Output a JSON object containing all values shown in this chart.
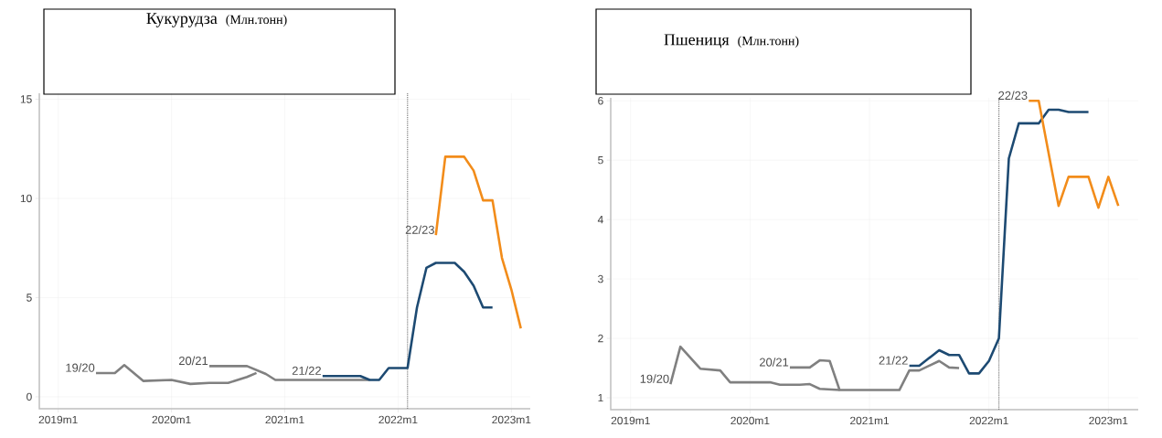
{
  "chart_data": [
    {
      "type": "line",
      "title": "Кукурудза",
      "subtitle": "(Млн.тонн)",
      "xlim": [
        "2018-11",
        "2023-03"
      ],
      "ylim": [
        -0.6,
        15.3
      ],
      "xticks": [
        {
          "value": "2019-01",
          "label": "2019m1"
        },
        {
          "value": "2020-01",
          "label": "2020m1"
        },
        {
          "value": "2021-01",
          "label": "2021m1"
        },
        {
          "value": "2022-01",
          "label": "2022m1"
        },
        {
          "value": "2023-01",
          "label": "2023m1"
        }
      ],
      "yticks": [
        0,
        5,
        10,
        15
      ],
      "grid": true,
      "series": [
        {
          "name": "19/20",
          "color": "#808080",
          "x": [
            "2019-05",
            "2019-07",
            "2019-08",
            "2019-10",
            "2020-01",
            "2020-03",
            "2020-05",
            "2020-07",
            "2020-09",
            "2020-10"
          ],
          "values": [
            1.2,
            1.2,
            1.6,
            0.8,
            0.85,
            0.65,
            0.7,
            0.7,
            1.0,
            1.2
          ]
        },
        {
          "name": "20/21",
          "color": "#808080",
          "x": [
            "2020-05",
            "2020-09",
            "2020-11",
            "2020-12",
            "2021-01",
            "2021-10"
          ],
          "values": [
            1.55,
            1.55,
            1.15,
            0.85,
            0.85,
            0.85
          ]
        },
        {
          "name": "21/22",
          "color": "#1d4a72",
          "x": [
            "2021-05",
            "2021-09",
            "2021-10",
            "2021-11",
            "2021-12",
            "2022-02",
            "2022-03",
            "2022-04",
            "2022-05",
            "2022-07",
            "2022-08",
            "2022-09",
            "2022-10",
            "2022-11"
          ],
          "values": [
            1.05,
            1.05,
            0.85,
            0.85,
            1.45,
            1.45,
            4.5,
            6.5,
            6.75,
            6.75,
            6.3,
            5.6,
            4.5,
            4.5
          ]
        },
        {
          "name": "22/23",
          "color": "#f28c1a",
          "x": [
            "2022-05",
            "2022-06",
            "2022-08",
            "2022-09",
            "2022-10",
            "2022-11",
            "2022-12",
            "2023-01",
            "2023-02"
          ],
          "values": [
            8.15,
            12.1,
            12.1,
            11.4,
            9.9,
            9.9,
            7.0,
            5.4,
            3.45
          ]
        }
      ],
      "ref_lines": [
        {
          "axis": "x",
          "value": "2022-02",
          "color": "#808080",
          "line_style": "dotted"
        }
      ]
    },
    {
      "type": "line",
      "title": "Пшениця",
      "subtitle": "(Млн.тонн)",
      "xlim": [
        "2018-11",
        "2023-04"
      ],
      "ylim": [
        0.8,
        6.05
      ],
      "xticks": [
        {
          "value": "2019-01",
          "label": "2019m1"
        },
        {
          "value": "2020-01",
          "label": "2020m1"
        },
        {
          "value": "2021-01",
          "label": "2021m1"
        },
        {
          "value": "2022-01",
          "label": "2022m1"
        },
        {
          "value": "2023-01",
          "label": "2023m1"
        }
      ],
      "yticks": [
        1,
        2,
        3,
        4,
        5,
        6
      ],
      "grid": true,
      "series": [
        {
          "name": "19/20",
          "color": "#808080",
          "x": [
            "2019-05",
            "2019-06",
            "2019-08",
            "2019-10",
            "2019-11",
            "2020-03",
            "2020-04",
            "2020-06",
            "2020-07",
            "2020-08",
            "2020-10"
          ],
          "values": [
            1.23,
            1.86,
            1.49,
            1.46,
            1.26,
            1.26,
            1.22,
            1.22,
            1.23,
            1.15,
            1.13
          ]
        },
        {
          "name": "20/21",
          "color": "#808080",
          "x": [
            "2020-05",
            "2020-07",
            "2020-08",
            "2020-09",
            "2020-10",
            "2021-04",
            "2021-05",
            "2021-06",
            "2021-08",
            "2021-09",
            "2021-10"
          ],
          "values": [
            1.51,
            1.51,
            1.63,
            1.62,
            1.13,
            1.13,
            1.46,
            1.46,
            1.62,
            1.51,
            1.5
          ]
        },
        {
          "name": "21/22",
          "color": "#1d4a72",
          "x": [
            "2021-05",
            "2021-06",
            "2021-08",
            "2021-09",
            "2021-10",
            "2021-11",
            "2021-12",
            "2022-01",
            "2022-02",
            "2022-03",
            "2022-04",
            "2022-06",
            "2022-07",
            "2022-08",
            "2022-09",
            "2022-11"
          ],
          "values": [
            1.54,
            1.54,
            1.8,
            1.72,
            1.72,
            1.41,
            1.41,
            1.62,
            2.0,
            5.03,
            5.62,
            5.62,
            5.85,
            5.85,
            5.81,
            5.81
          ]
        },
        {
          "name": "22/23",
          "color": "#f28c1a",
          "x": [
            "2022-05",
            "2022-06",
            "2022-08",
            "2022-09",
            "2022-11",
            "2022-12",
            "2023-01",
            "2023-02"
          ],
          "values": [
            6.0,
            6.0,
            4.23,
            4.72,
            4.72,
            4.2,
            4.72,
            4.23
          ]
        }
      ],
      "ref_lines": [
        {
          "axis": "x",
          "value": "2022-02",
          "color": "#808080",
          "line_style": "dotted"
        }
      ]
    }
  ]
}
